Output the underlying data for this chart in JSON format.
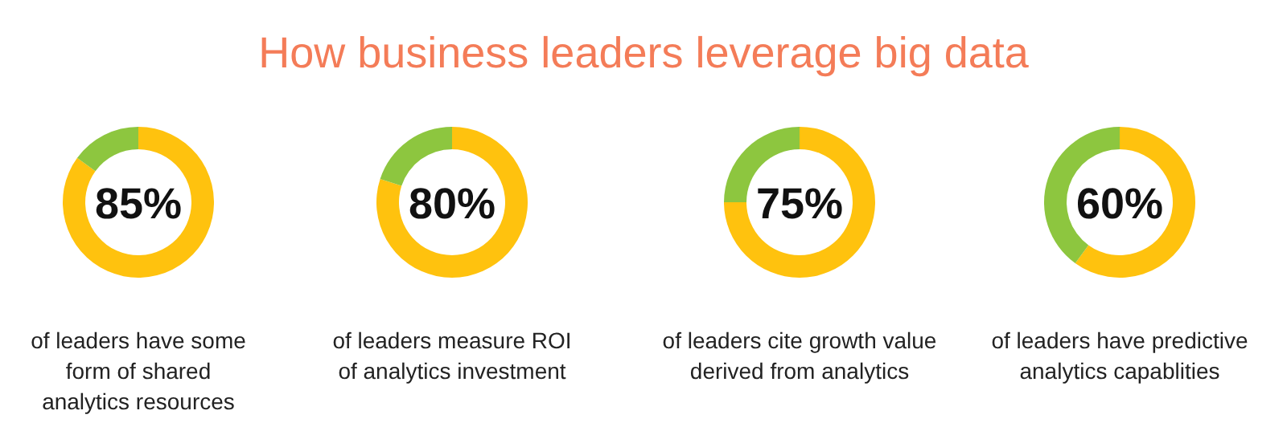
{
  "chart_data": [
    {
      "type": "donut",
      "title": "How business leaders leverage big data",
      "categories": [
        null,
        null
      ],
      "values": [
        85,
        15
      ],
      "colors": [
        "#ffc20e",
        "#8dc63f"
      ],
      "value_labels": [
        "85%",
        null
      ],
      "annotations": [
        "of leaders have some\nform of shared\nanalytics resources"
      ]
    },
    {
      "type": "donut",
      "categories": [
        null,
        null
      ],
      "values": [
        80,
        20
      ],
      "colors": [
        "#ffc20e",
        "#8dc63f"
      ],
      "value_labels": [
        "80%",
        null
      ],
      "annotations": [
        "of leaders measure ROI\nof analytics investment"
      ]
    },
    {
      "type": "donut",
      "categories": [
        null,
        null
      ],
      "values": [
        75,
        25
      ],
      "colors": [
        "#ffc20e",
        "#8dc63f"
      ],
      "value_labels": [
        "75%",
        null
      ],
      "annotations": [
        "of leaders cite growth value\nderived from analytics"
      ]
    },
    {
      "type": "donut",
      "categories": [
        null,
        null
      ],
      "values": [
        60,
        40
      ],
      "colors": [
        "#ffc20e",
        "#8dc63f"
      ],
      "value_labels": [
        "60%",
        null
      ],
      "annotations": [
        "of leaders have predictive\nanalytics capablities"
      ]
    }
  ]
}
